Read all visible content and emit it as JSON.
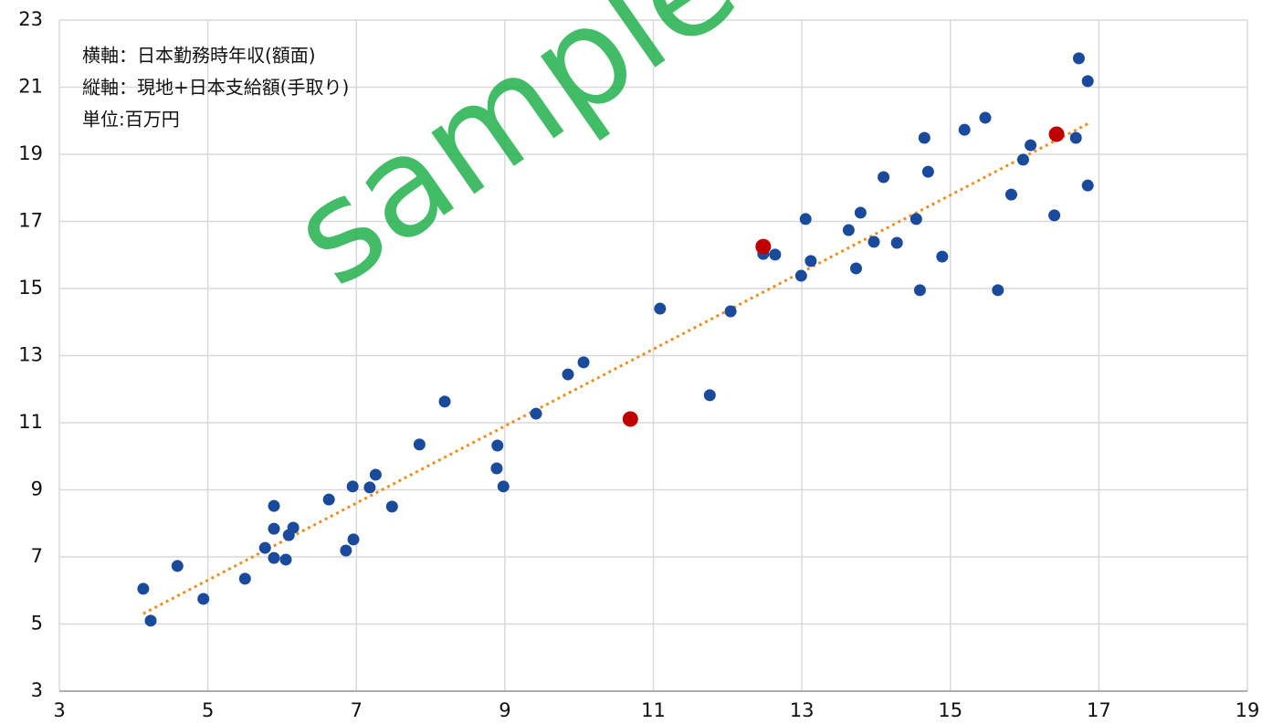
{
  "chart_data": {
    "type": "scatter",
    "annotations": [
      "横軸：日本勤務時年収(額面)",
      "縦軸：現地+日本支給額(手取り)",
      "単位:百万円"
    ],
    "watermark": "sample",
    "xlim": [
      3,
      19
    ],
    "xticks": [
      3,
      5,
      7,
      9,
      11,
      13,
      15,
      17,
      19
    ],
    "ylim": [
      3,
      23
    ],
    "yticks": [
      3,
      5,
      7,
      9,
      11,
      13,
      15,
      17,
      19,
      21,
      23
    ],
    "grid": true,
    "series": [
      {
        "color": "#1a4a9c",
        "x": [
          4.13,
          4.23,
          4.59,
          4.94,
          5.5,
          5.77,
          5.89,
          5.89,
          5.89,
          6.05,
          6.09,
          6.15,
          6.63,
          6.86,
          6.95,
          6.96,
          7.18,
          7.26,
          7.48,
          7.85,
          8.19,
          8.89,
          8.9,
          8.98,
          9.42,
          9.85,
          10.06,
          11.09,
          11.76,
          12.04,
          12.48,
          12.64,
          12.99,
          13.05,
          13.12,
          13.63,
          13.73,
          13.79,
          13.97,
          14.1,
          14.28,
          14.54,
          14.59,
          14.65,
          14.7,
          14.89,
          15.19,
          15.47,
          15.64,
          15.82,
          15.98,
          16.08,
          16.4,
          16.69,
          16.73,
          16.85,
          16.85
        ],
        "values": [
          6.05,
          5.1,
          6.73,
          5.75,
          6.35,
          7.27,
          8.52,
          7.84,
          6.97,
          6.92,
          7.65,
          7.87,
          8.71,
          7.19,
          9.1,
          7.52,
          9.07,
          9.45,
          8.5,
          10.35,
          11.63,
          9.64,
          10.32,
          9.1,
          11.27,
          12.44,
          12.8,
          14.4,
          11.82,
          14.32,
          16.03,
          16.01,
          15.38,
          17.07,
          15.82,
          16.74,
          15.6,
          17.26,
          16.39,
          18.32,
          16.36,
          17.07,
          14.95,
          19.49,
          18.48,
          15.95,
          19.73,
          20.09,
          14.95,
          17.8,
          18.84,
          19.27,
          17.18,
          19.49,
          21.86,
          18.07,
          21.18
        ]
      },
      {
        "color": "#c00000",
        "x": [
          10.69,
          12.48,
          16.43
        ],
        "values": [
          11.11,
          16.25,
          19.6
        ]
      }
    ],
    "trendline": {
      "color": "#f08c1e",
      "x": [
        4.13,
        16.87
      ],
      "y": [
        5.31,
        19.93
      ]
    }
  }
}
